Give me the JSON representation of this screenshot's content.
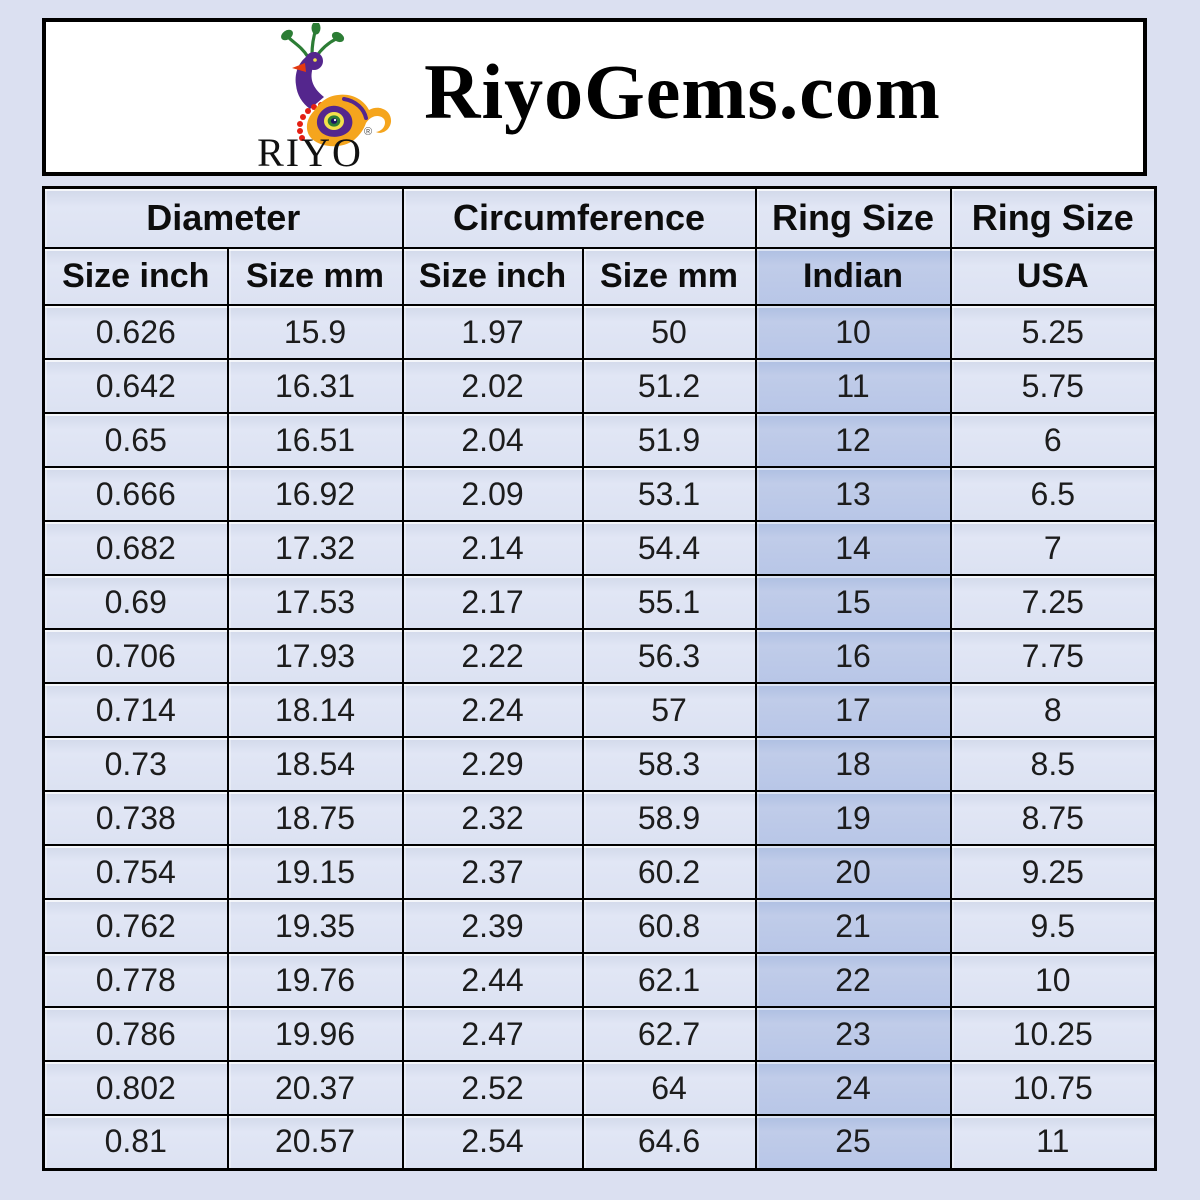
{
  "header": {
    "logo": {
      "icon": "peacock-logo",
      "wordmark": "RIYO",
      "registered_mark": "®"
    },
    "site_title": "RiyoGems.com"
  },
  "table": {
    "group_labels": [
      "Diameter",
      "Circumference",
      "Ring Size",
      "Ring Size"
    ],
    "sub_headers": [
      "Size inch",
      "Size mm",
      "Size inch",
      "Size mm",
      "Indian",
      "USA"
    ],
    "rows": [
      [
        "0.626",
        "15.9",
        "1.97",
        "50",
        "10",
        "5.25"
      ],
      [
        "0.642",
        "16.31",
        "2.02",
        "51.2",
        "11",
        "5.75"
      ],
      [
        "0.65",
        "16.51",
        "2.04",
        "51.9",
        "12",
        "6"
      ],
      [
        "0.666",
        "16.92",
        "2.09",
        "53.1",
        "13",
        "6.5"
      ],
      [
        "0.682",
        "17.32",
        "2.14",
        "54.4",
        "14",
        "7"
      ],
      [
        "0.69",
        "17.53",
        "2.17",
        "55.1",
        "15",
        "7.25"
      ],
      [
        "0.706",
        "17.93",
        "2.22",
        "56.3",
        "16",
        "7.75"
      ],
      [
        "0.714",
        "18.14",
        "2.24",
        "57",
        "17",
        "8"
      ],
      [
        "0.73",
        "18.54",
        "2.29",
        "58.3",
        "18",
        "8.5"
      ],
      [
        "0.738",
        "18.75",
        "2.32",
        "58.9",
        "19",
        "8.75"
      ],
      [
        "0.754",
        "19.15",
        "2.37",
        "60.2",
        "20",
        "9.25"
      ],
      [
        "0.762",
        "19.35",
        "2.39",
        "60.8",
        "21",
        "9.5"
      ],
      [
        "0.778",
        "19.76",
        "2.44",
        "62.1",
        "22",
        "10"
      ],
      [
        "0.786",
        "19.96",
        "2.47",
        "62.7",
        "23",
        "10.25"
      ],
      [
        "0.802",
        "20.37",
        "2.52",
        "64",
        "24",
        "10.75"
      ],
      [
        "0.81",
        "20.57",
        "2.54",
        "64.6",
        "25",
        "11"
      ]
    ]
  },
  "colors": {
    "page_bg": "#dbe0f1",
    "cell_bg": "#dce2f2",
    "indian_column_bg": "#b8c6e7",
    "border": "#000000",
    "banner_bg": "#ffffff",
    "text": "#1c1c1c",
    "logo_purple": "#54268d",
    "logo_orange": "#f5a51d",
    "logo_green": "#2c7d35",
    "logo_red": "#e41f13"
  }
}
